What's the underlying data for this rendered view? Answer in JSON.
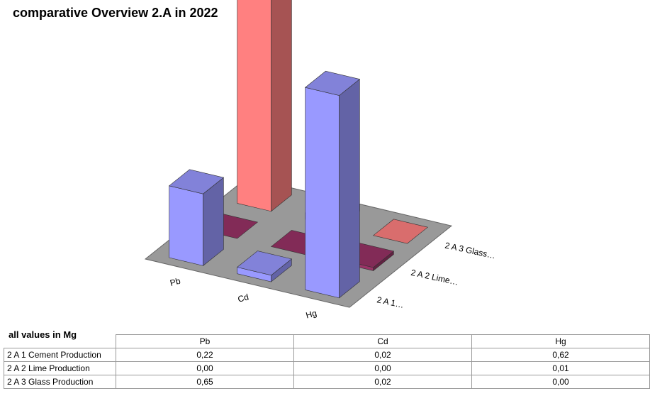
{
  "chart_data": {
    "type": "bar3d",
    "title": "comparative Overview 2.A in 2022",
    "categories": [
      "Pb",
      "Cd",
      "Hg"
    ],
    "series": [
      {
        "name": "2 A 1…",
        "color": "#9999ff",
        "values": [
          0.22,
          0.02,
          0.62
        ]
      },
      {
        "name": "2 A 2 Lime…",
        "color": "#993366",
        "values": [
          0,
          0,
          0.01
        ]
      },
      {
        "name": "2 A 3 Glass…",
        "color": "#ff8080",
        "values": [
          0.65,
          0.02,
          0
        ]
      }
    ]
  },
  "table": {
    "caption": "all values in Mg",
    "rows": [
      [
        "2 A 1 Cement Production",
        "0,22",
        "0,02",
        "0,62"
      ],
      [
        "2 A 2 Lime Production",
        "0,00",
        "0,00",
        "0,01"
      ],
      [
        "2 A 3 Glass Production",
        "0,65",
        "0,02",
        "0,00"
      ]
    ]
  }
}
